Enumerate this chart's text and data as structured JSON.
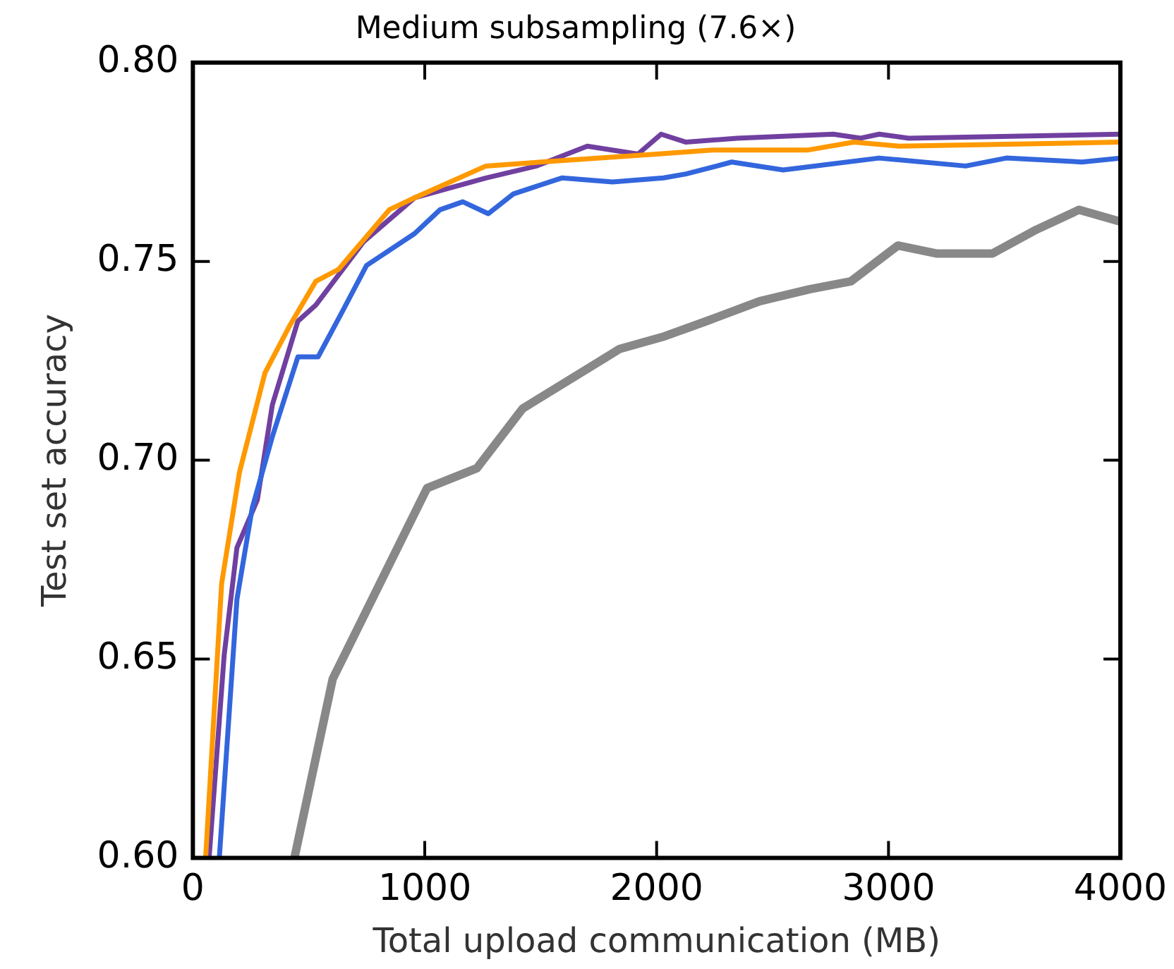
{
  "chart_data": {
    "type": "line",
    "title": "Medium subsampling (7.6×)",
    "xlabel": "Total upload communication (MB)",
    "ylabel": "Test set accuracy",
    "xlim": [
      0,
      4000
    ],
    "ylim": [
      0.6,
      0.8
    ],
    "xticks": [
      0,
      1000,
      2000,
      3000,
      4000
    ],
    "yticks": [
      {
        "value": 0.6,
        "label": "0.60"
      },
      {
        "value": 0.65,
        "label": "0.65"
      },
      {
        "value": 0.7,
        "label": "0.70"
      },
      {
        "value": 0.75,
        "label": "0.75"
      },
      {
        "value": 0.8,
        "label": "0.80"
      }
    ],
    "grid": false,
    "legend": false,
    "marker": "none",
    "line_style": "solid",
    "series": [
      {
        "color": "#888888",
        "x": [
          438,
          603,
          1010,
          1225,
          1422,
          1841,
          2025,
          2216,
          2444,
          2660,
          2838,
          3041,
          3206,
          3448,
          3638,
          3822,
          4000
        ],
        "values": [
          0.6,
          0.645,
          0.693,
          0.698,
          0.713,
          0.728,
          0.731,
          0.735,
          0.74,
          0.743,
          0.745,
          0.754,
          0.752,
          0.752,
          0.758,
          0.763,
          0.76
        ]
      },
      {
        "color": "#3366dd",
        "x": [
          114,
          190,
          256,
          343,
          453,
          540,
          650,
          749,
          956,
          1066,
          1164,
          1274,
          1383,
          1591,
          1810,
          2030,
          2127,
          2324,
          2546,
          2959,
          3333,
          3508,
          3835,
          4000
        ],
        "values": [
          0.6,
          0.665,
          0.688,
          0.706,
          0.726,
          0.726,
          0.738,
          0.749,
          0.757,
          0.763,
          0.765,
          0.762,
          0.767,
          0.771,
          0.77,
          0.771,
          0.772,
          0.775,
          0.773,
          0.776,
          0.774,
          0.776,
          0.775,
          0.776
        ]
      },
      {
        "color": "#ff9900",
        "x": [
          55,
          124,
          201,
          311,
          419,
          530,
          628,
          847,
          956,
          1264,
          1500,
          2000,
          2240,
          2650,
          2850,
          3044,
          4000
        ],
        "values": [
          0.6,
          0.669,
          0.697,
          0.722,
          0.734,
          0.745,
          0.748,
          0.763,
          0.766,
          0.774,
          0.775,
          0.777,
          0.778,
          0.778,
          0.78,
          0.779,
          0.78
        ]
      },
      {
        "color": "#7040a0",
        "x": [
          70,
          135,
          190,
          278,
          343,
          453,
          530,
          737,
          956,
          1264,
          1482,
          1701,
          1920,
          2019,
          2127,
          2348,
          2762,
          2880,
          2960,
          3087,
          4000
        ],
        "values": [
          0.6,
          0.651,
          0.678,
          0.69,
          0.714,
          0.735,
          0.739,
          0.755,
          0.766,
          0.771,
          0.774,
          0.779,
          0.777,
          0.782,
          0.78,
          0.781,
          0.782,
          0.781,
          0.782,
          0.781,
          0.782
        ]
      }
    ]
  }
}
